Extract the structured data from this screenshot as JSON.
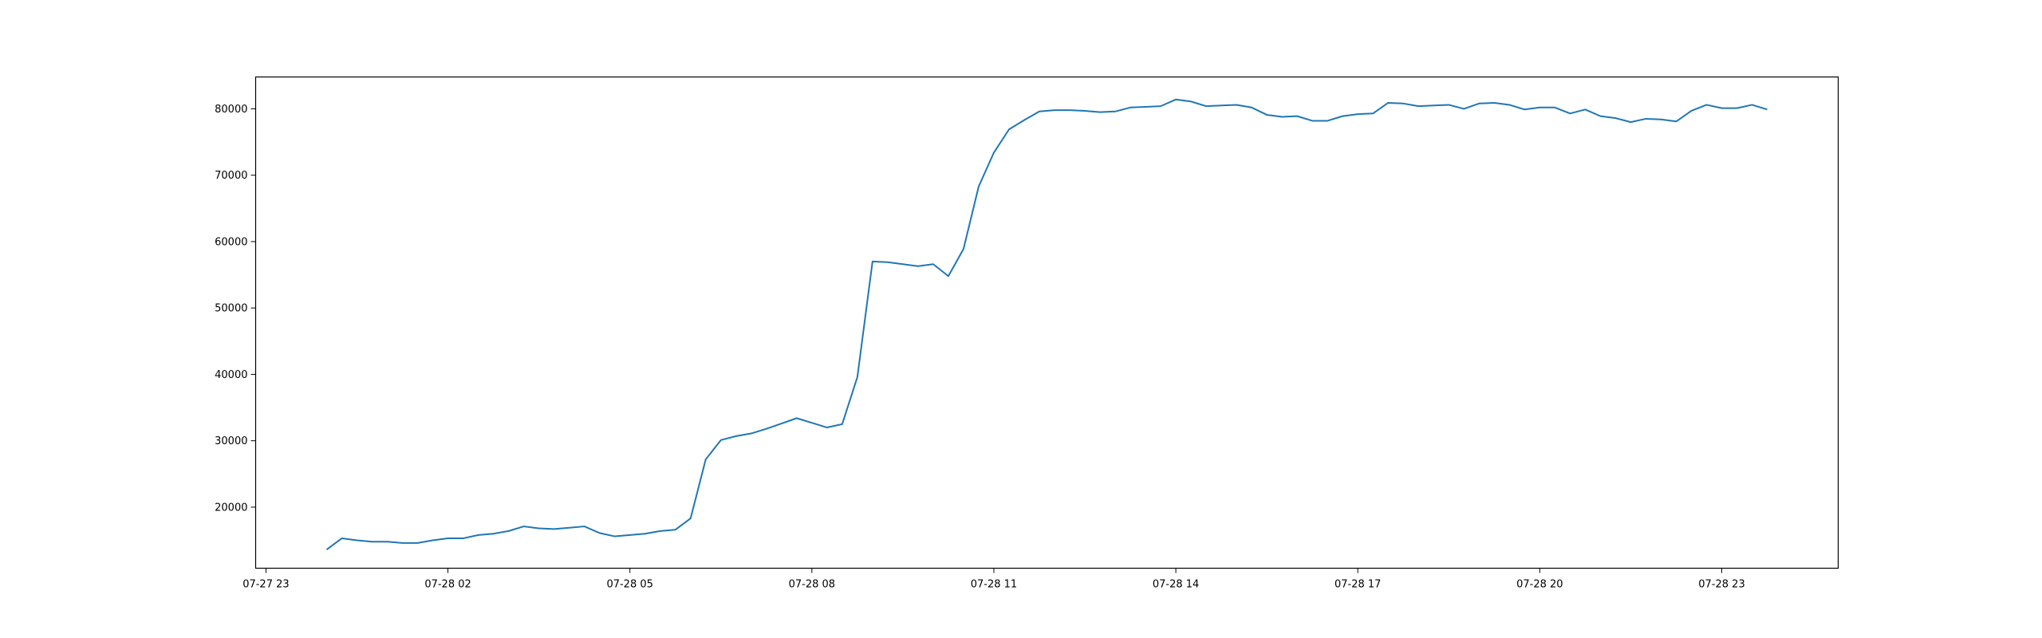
{
  "chart_data": {
    "type": "line",
    "title": "",
    "xlabel": "",
    "ylabel": "",
    "grid": false,
    "legend": "none",
    "line_color": "#1f77b4",
    "x_ticks": [
      {
        "label": "07-27 23",
        "hours": 0
      },
      {
        "label": "07-28 02",
        "hours": 3
      },
      {
        "label": "07-28 05",
        "hours": 6
      },
      {
        "label": "07-28 08",
        "hours": 9
      },
      {
        "label": "07-28 11",
        "hours": 12
      },
      {
        "label": "07-28 14",
        "hours": 15
      },
      {
        "label": "07-28 17",
        "hours": 18
      },
      {
        "label": "07-28 20",
        "hours": 21
      },
      {
        "label": "07-28 23",
        "hours": 24
      }
    ],
    "y_ticks": [
      20000,
      30000,
      40000,
      50000,
      60000,
      70000,
      80000
    ],
    "xlim": [
      -0.17,
      25.92
    ],
    "ylim": [
      10800,
      84800
    ],
    "x": [
      1.0,
      1.25,
      1.5,
      1.75,
      2.0,
      2.25,
      2.5,
      2.75,
      3.0,
      3.25,
      3.5,
      3.75,
      4.0,
      4.25,
      4.5,
      4.75,
      5.0,
      5.25,
      5.5,
      5.75,
      6.0,
      6.25,
      6.5,
      6.75,
      7.0,
      7.25,
      7.5,
      7.75,
      8.0,
      8.25,
      8.5,
      8.75,
      9.0,
      9.25,
      9.5,
      9.75,
      10.0,
      10.25,
      10.5,
      10.75,
      11.0,
      11.25,
      11.5,
      11.75,
      12.0,
      12.25,
      12.5,
      12.75,
      13.0,
      13.25,
      13.5,
      13.75,
      14.0,
      14.25,
      14.5,
      14.75,
      15.0,
      15.25,
      15.5,
      15.75,
      16.0,
      16.25,
      16.5,
      16.75,
      17.0,
      17.25,
      17.5,
      17.75,
      18.0,
      18.25,
      18.5,
      18.75,
      19.0,
      19.25,
      19.5,
      19.75,
      20.0,
      20.25,
      20.5,
      20.75,
      21.0,
      21.25,
      21.5,
      21.75,
      22.0,
      22.25,
      22.5,
      22.75,
      23.0,
      23.25,
      23.5,
      23.75,
      24.0,
      24.25,
      24.5,
      24.75
    ],
    "values": [
      13600,
      15300,
      15000,
      14800,
      14800,
      14600,
      14600,
      15000,
      15300,
      15300,
      15800,
      16000,
      16400,
      17100,
      16800,
      16700,
      16900,
      17100,
      16100,
      15600,
      15800,
      16000,
      16400,
      16600,
      18300,
      27200,
      30100,
      30700,
      31100,
      31800,
      32600,
      33400,
      32700,
      32000,
      32500,
      39600,
      57000,
      56900,
      56600,
      56300,
      56600,
      54800,
      58900,
      68300,
      73400,
      76900,
      78300,
      79600,
      79800,
      79800,
      79700,
      79500,
      79600,
      80200,
      80300,
      80400,
      81400,
      81100,
      80400,
      80500,
      80600,
      80200,
      79100,
      78800,
      78900,
      78200,
      78200,
      78900,
      79200,
      79300,
      80900,
      80800,
      80400,
      80500,
      80600,
      80000,
      80800,
      80900,
      80600,
      79900,
      80200,
      80200,
      79300,
      79900,
      78900,
      78600,
      78000,
      78500,
      78400,
      78100,
      79700,
      80600,
      80100,
      80100,
      80600,
      79900
    ]
  }
}
